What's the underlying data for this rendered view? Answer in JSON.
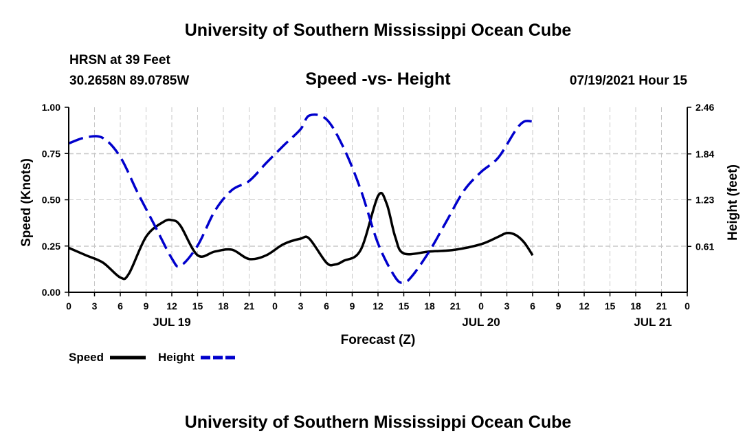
{
  "page_title": "University of Southern Mississippi Ocean Cube",
  "footer_title": "University of Southern Mississippi Ocean Cube",
  "station": {
    "name": "HRSN at 39 Feet",
    "coords": "30.2658N  89.0785W"
  },
  "run_time": "07/19/2021 Hour 15",
  "colors": {
    "speed": "#000000",
    "height": "#0000cc",
    "grid": "#c8c8c8"
  },
  "chart_data": {
    "type": "line",
    "title": "Speed -vs- Height",
    "xlabel": "Forecast (Z)",
    "ylabel": "Speed (Knots)",
    "y2label": "Height (feet)",
    "x_range_hours": [
      0,
      72
    ],
    "ylim": [
      0,
      1.0
    ],
    "y2lim": [
      0,
      2.46
    ],
    "x_ticks": [
      {
        "h": 0,
        "label": "0"
      },
      {
        "h": 3,
        "label": "3"
      },
      {
        "h": 6,
        "label": "6"
      },
      {
        "h": 9,
        "label": "9"
      },
      {
        "h": 12,
        "label": "12"
      },
      {
        "h": 15,
        "label": "15"
      },
      {
        "h": 18,
        "label": "18"
      },
      {
        "h": 21,
        "label": "21"
      },
      {
        "h": 24,
        "label": "0"
      },
      {
        "h": 27,
        "label": "3"
      },
      {
        "h": 30,
        "label": "6"
      },
      {
        "h": 33,
        "label": "9"
      },
      {
        "h": 36,
        "label": "12"
      },
      {
        "h": 39,
        "label": "15"
      },
      {
        "h": 42,
        "label": "18"
      },
      {
        "h": 45,
        "label": "21"
      },
      {
        "h": 48,
        "label": "0"
      },
      {
        "h": 51,
        "label": "3"
      },
      {
        "h": 54,
        "label": "6"
      },
      {
        "h": 57,
        "label": "9"
      },
      {
        "h": 60,
        "label": "12"
      },
      {
        "h": 63,
        "label": "15"
      },
      {
        "h": 66,
        "label": "18"
      },
      {
        "h": 69,
        "label": "21"
      },
      {
        "h": 72,
        "label": "0"
      }
    ],
    "date_labels": [
      {
        "h": 12,
        "label": "JUL 19"
      },
      {
        "h": 48,
        "label": "JUL 20"
      },
      {
        "h": 68,
        "label": "JUL 21"
      }
    ],
    "y_ticks": [
      {
        "v": 0.0,
        "label": "0.00"
      },
      {
        "v": 0.25,
        "label": "0.25"
      },
      {
        "v": 0.5,
        "label": "0.50"
      },
      {
        "v": 0.75,
        "label": "0.75"
      },
      {
        "v": 1.0,
        "label": "1.00"
      }
    ],
    "y2_ticks": [
      {
        "v": 0.61,
        "label": "0.61"
      },
      {
        "v": 1.23,
        "label": "1.23"
      },
      {
        "v": 1.84,
        "label": "1.84"
      },
      {
        "v": 2.46,
        "label": "2.46"
      }
    ],
    "series": [
      {
        "name": "Speed",
        "axis": "left",
        "x": [
          0,
          2,
          4,
          6,
          7,
          9,
          11,
          12,
          13,
          15,
          17,
          19,
          21,
          23,
          25,
          27,
          28,
          30,
          31,
          32,
          34,
          36,
          37,
          38,
          39,
          42,
          45,
          48,
          50,
          51,
          52,
          53,
          54
        ],
        "values": [
          0.24,
          0.2,
          0.16,
          0.08,
          0.1,
          0.3,
          0.38,
          0.39,
          0.36,
          0.2,
          0.22,
          0.23,
          0.18,
          0.2,
          0.26,
          0.29,
          0.29,
          0.16,
          0.15,
          0.17,
          0.23,
          0.52,
          0.48,
          0.3,
          0.21,
          0.22,
          0.23,
          0.26,
          0.3,
          0.32,
          0.31,
          0.27,
          0.2
        ]
      },
      {
        "name": "Height",
        "axis": "right",
        "x": [
          0,
          2,
          4,
          6,
          8,
          10,
          12,
          13,
          15,
          17,
          19,
          21,
          23,
          25,
          27,
          28,
          30,
          32,
          34,
          36,
          38,
          39,
          40,
          42,
          44,
          46,
          48,
          50,
          52,
          53,
          54
        ],
        "values": [
          1.98,
          2.06,
          2.05,
          1.8,
          1.33,
          0.89,
          0.45,
          0.35,
          0.62,
          1.08,
          1.36,
          1.48,
          1.72,
          1.95,
          2.17,
          2.35,
          2.3,
          1.92,
          1.36,
          0.65,
          0.2,
          0.13,
          0.22,
          0.55,
          0.95,
          1.35,
          1.6,
          1.79,
          2.15,
          2.27,
          2.27
        ]
      }
    ],
    "legend": [
      {
        "name": "Speed",
        "style": "solid"
      },
      {
        "name": "Height",
        "style": "dashed"
      }
    ]
  }
}
